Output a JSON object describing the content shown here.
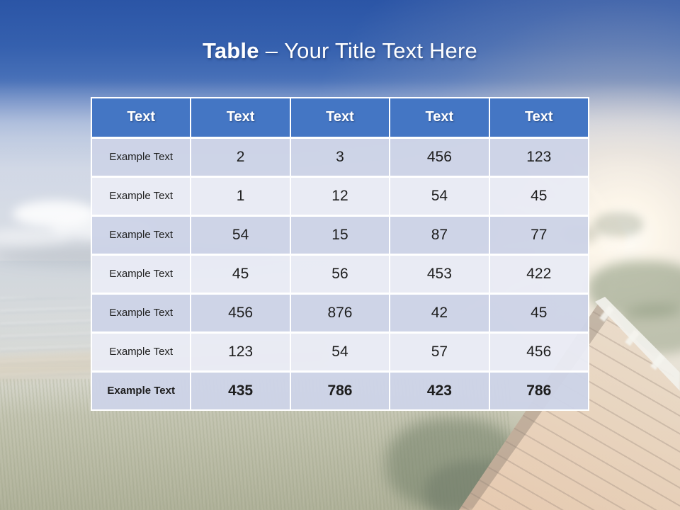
{
  "slide": {
    "title": {
      "keyword": "Table",
      "separator": "–",
      "text": "Your Title Text Here"
    }
  },
  "table": {
    "headers": [
      "Text",
      "Text",
      "Text",
      "Text",
      "Text"
    ],
    "rows": [
      {
        "label": "Example Text",
        "values": [
          "2",
          "3",
          "456",
          "123"
        ],
        "bold": false
      },
      {
        "label": "Example Text",
        "values": [
          "1",
          "12",
          "54",
          "45"
        ],
        "bold": false
      },
      {
        "label": "Example Text",
        "values": [
          "54",
          "15",
          "87",
          "77"
        ],
        "bold": false
      },
      {
        "label": "Example Text",
        "values": [
          "45",
          "56",
          "453",
          "422"
        ],
        "bold": false
      },
      {
        "label": "Example Text",
        "values": [
          "456",
          "876",
          "42",
          "45"
        ],
        "bold": false
      },
      {
        "label": "Example Text",
        "values": [
          "123",
          "54",
          "57",
          "456"
        ],
        "bold": false
      },
      {
        "label": "Example Text",
        "values": [
          "435",
          "786",
          "423",
          "786"
        ],
        "bold": true
      }
    ]
  },
  "colors": {
    "header_background": "#4476c4",
    "header_text": "#ffffff",
    "row_band_dark": "#cdd3e7",
    "row_band_light": "#e9ebf5",
    "cell_text": "#1d1d1d",
    "title_text": "#ffffff",
    "banner_blue": "#2b55a6"
  }
}
